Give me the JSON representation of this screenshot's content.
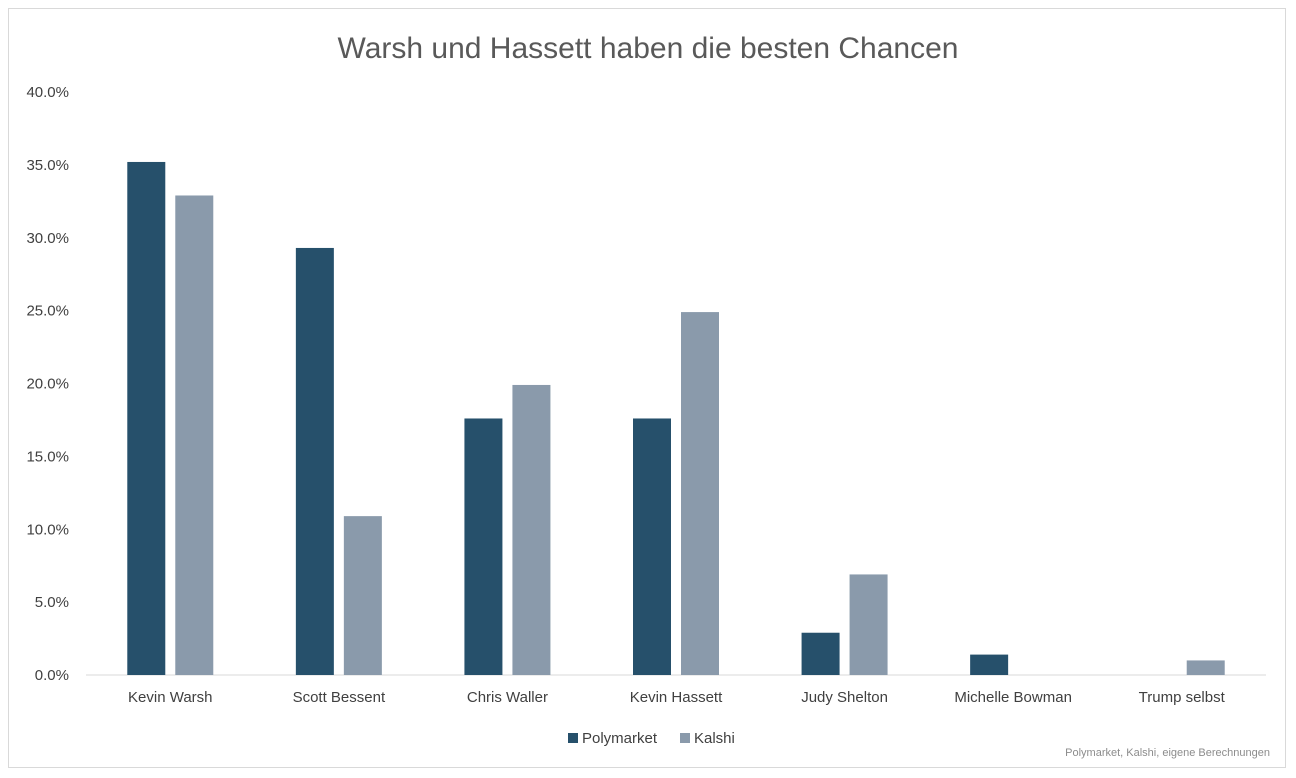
{
  "chart_data": {
    "type": "bar",
    "title": "Warsh und Hassett haben die besten Chancen",
    "categories": [
      "Kevin Warsh",
      "Scott Bessent",
      "Chris Waller",
      "Kevin Hassett",
      "Judy Shelton",
      "Michelle Bowman",
      "Trump selbst"
    ],
    "series": [
      {
        "name": "Polymarket",
        "color": "#26506b",
        "values": [
          35.2,
          29.3,
          17.6,
          17.6,
          2.9,
          1.4,
          0.0
        ]
      },
      {
        "name": "Kalshi",
        "color": "#8a9aab",
        "values": [
          32.9,
          10.9,
          19.9,
          24.9,
          6.9,
          0.0,
          1.0
        ]
      }
    ],
    "ylim": [
      0,
      40
    ],
    "yticks": [
      "0.0%",
      "5.0%",
      "10.0%",
      "15.0%",
      "20.0%",
      "25.0%",
      "30.0%",
      "35.0%",
      "40.0%"
    ],
    "legend_position": "bottom",
    "grid": false,
    "source": "Polymarket, Kalshi, eigene Berechnungen"
  }
}
